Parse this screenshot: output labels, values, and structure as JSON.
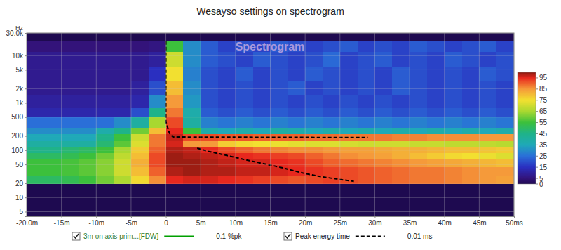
{
  "chart_data": {
    "type": "heatmap",
    "title": "Wesayso settings on spectrogram",
    "annotation": "Spectrogram",
    "ylabel": "Hz",
    "xlim": [
      -20,
      50
    ],
    "xticks": [
      {
        "value": -20,
        "label": "-20.0m"
      },
      {
        "value": -15,
        "label": "-15m"
      },
      {
        "value": -10,
        "label": "-10m"
      },
      {
        "value": -5,
        "label": "-5m"
      },
      0,
      {
        "value": 5,
        "label": "5m"
      },
      {
        "value": 10,
        "label": "10m"
      },
      {
        "value": 15,
        "label": "15m"
      },
      {
        "value": 20,
        "label": "20m"
      },
      {
        "value": 25,
        "label": "25m"
      },
      {
        "value": 30,
        "label": "30m"
      },
      {
        "value": 35,
        "label": "35m"
      },
      {
        "value": 40,
        "label": "40m"
      },
      {
        "value": 45,
        "label": "45m"
      },
      {
        "value": 50,
        "label": "50ms"
      }
    ],
    "ylim": [
      4,
      30000
    ],
    "yticks": [
      {
        "value": 30000,
        "label": "30.0k"
      },
      {
        "value": 10000,
        "label": "10k"
      },
      {
        "value": 5000,
        "label": "5k"
      },
      {
        "value": 2000,
        "label": "2k"
      },
      {
        "value": 1000,
        "label": "1k"
      },
      500,
      200,
      100,
      50,
      20,
      10,
      5
    ],
    "log": "y",
    "grid": true,
    "colorbar": {
      "range": [
        0,
        100
      ],
      "ticks": [
        0,
        5,
        15,
        25,
        35,
        45,
        55,
        65,
        75,
        85,
        95
      ]
    },
    "series": [
      {
        "name": "3m on axis prim...[FDW]",
        "type": "heatmap",
        "color": "#00a000",
        "line_style": "solid",
        "label": "0.1 %pk",
        "x": [
          -20,
          -17.5,
          -15,
          -12.5,
          -10,
          -7.5,
          -5,
          -2.5,
          0,
          2.5,
          5,
          7.5,
          10,
          12.5,
          15,
          17.5,
          20,
          22.5,
          25,
          27.5,
          30,
          32.5,
          35,
          37.5,
          40,
          42.5,
          45,
          47.5,
          50
        ],
        "y": [
          20,
          30,
          45,
          65,
          90,
          120,
          160,
          220,
          300,
          500,
          800,
          1500,
          3000,
          6000,
          12000,
          20000
        ],
        "values": [
          [
            50,
            50,
            52,
            55,
            60,
            66,
            76,
            86,
            95,
            96,
            96,
            95,
            94,
            93,
            92,
            91,
            92,
            93,
            92,
            91,
            90,
            89,
            88,
            88,
            87,
            86,
            85,
            84
          ],
          [
            55,
            55,
            56,
            58,
            62,
            70,
            80,
            90,
            98,
            99,
            98,
            98,
            97,
            97,
            96,
            95,
            94,
            93,
            92,
            91,
            90,
            89,
            88,
            88,
            87,
            86,
            85,
            85
          ],
          [
            55,
            55,
            56,
            58,
            62,
            70,
            82,
            92,
            99,
            99,
            98,
            97,
            96,
            96,
            95,
            94,
            92,
            90,
            89,
            88,
            87,
            86,
            85,
            84,
            83,
            82,
            81,
            80
          ],
          [
            50,
            50,
            52,
            55,
            60,
            68,
            80,
            92,
            99,
            98,
            97,
            96,
            95,
            94,
            93,
            92,
            90,
            88,
            86,
            85,
            84,
            82,
            80,
            78,
            76,
            75,
            74,
            72
          ],
          [
            45,
            45,
            48,
            50,
            55,
            65,
            78,
            90,
            98,
            97,
            95,
            92,
            90,
            88,
            87,
            86,
            86,
            85,
            84,
            84,
            83,
            82,
            82,
            81,
            80,
            80,
            79,
            78
          ],
          [
            40,
            40,
            40,
            40,
            48,
            58,
            72,
            88,
            96,
            85,
            85,
            78,
            76,
            75,
            74,
            73,
            72,
            72,
            71,
            70,
            70,
            70,
            69,
            69,
            68,
            68,
            68,
            67
          ],
          [
            35,
            35,
            35,
            35,
            45,
            55,
            70,
            88,
            97,
            92,
            92,
            91,
            91,
            90,
            90,
            90,
            89,
            89,
            88,
            88,
            88,
            87,
            87,
            86,
            86,
            86,
            85,
            85
          ],
          [
            30,
            30,
            30,
            30,
            38,
            45,
            60,
            80,
            95,
            55,
            38,
            35,
            38,
            35,
            40,
            38,
            35,
            38,
            35,
            38,
            35,
            38,
            35,
            38,
            35,
            38,
            35,
            38
          ],
          [
            25,
            25,
            25,
            25,
            25,
            30,
            40,
            65,
            92,
            40,
            28,
            26,
            28,
            26,
            28,
            26,
            28,
            26,
            28,
            26,
            28,
            26,
            28,
            26,
            28,
            26,
            28,
            26
          ],
          [
            12,
            12,
            12,
            12,
            12,
            12,
            20,
            45,
            88,
            38,
            22,
            20,
            22,
            20,
            22,
            20,
            22,
            20,
            22,
            20,
            22,
            20,
            22,
            20,
            22,
            20,
            22,
            20
          ],
          [
            10,
            10,
            10,
            10,
            10,
            10,
            12,
            30,
            85,
            32,
            20,
            18,
            20,
            18,
            20,
            18,
            20,
            18,
            20,
            18,
            20,
            18,
            20,
            18,
            20,
            18,
            20,
            18
          ],
          [
            8,
            8,
            8,
            8,
            8,
            8,
            10,
            20,
            80,
            30,
            20,
            18,
            20,
            18,
            20,
            22,
            18,
            20,
            18,
            20,
            18,
            22,
            20,
            18,
            20,
            18,
            20,
            18
          ],
          [
            8,
            8,
            8,
            8,
            8,
            8,
            8,
            15,
            75,
            28,
            20,
            18,
            22,
            18,
            20,
            18,
            22,
            20,
            18,
            20,
            18,
            22,
            20,
            18,
            20,
            18,
            22,
            20
          ],
          [
            8,
            8,
            8,
            8,
            8,
            8,
            8,
            10,
            70,
            30,
            22,
            20,
            18,
            22,
            20,
            18,
            20,
            24,
            18,
            20,
            22,
            18,
            20,
            18,
            22,
            20,
            18,
            20
          ],
          [
            5,
            5,
            5,
            5,
            5,
            5,
            5,
            6,
            55,
            30,
            22,
            18,
            20,
            18,
            22,
            20,
            18,
            20,
            22,
            18,
            20,
            18,
            22,
            20,
            18,
            20,
            22,
            18
          ]
        ]
      },
      {
        "name": "Peak energy time",
        "type": "line",
        "color": "#000000",
        "line_style": "dashed",
        "label": "0.01 ms",
        "x": [
          0,
          0,
          0,
          0,
          0.5,
          1,
          29,
          null,
          4.5,
          6,
          8,
          10,
          12,
          14,
          16,
          18,
          20,
          22,
          25,
          27
        ],
        "y": [
          20000,
          5000,
          1000,
          400,
          230,
          190,
          185,
          null,
          110,
          95,
          82,
          70,
          60,
          52,
          45,
          38,
          32,
          28,
          24,
          22
        ]
      }
    ]
  }
}
